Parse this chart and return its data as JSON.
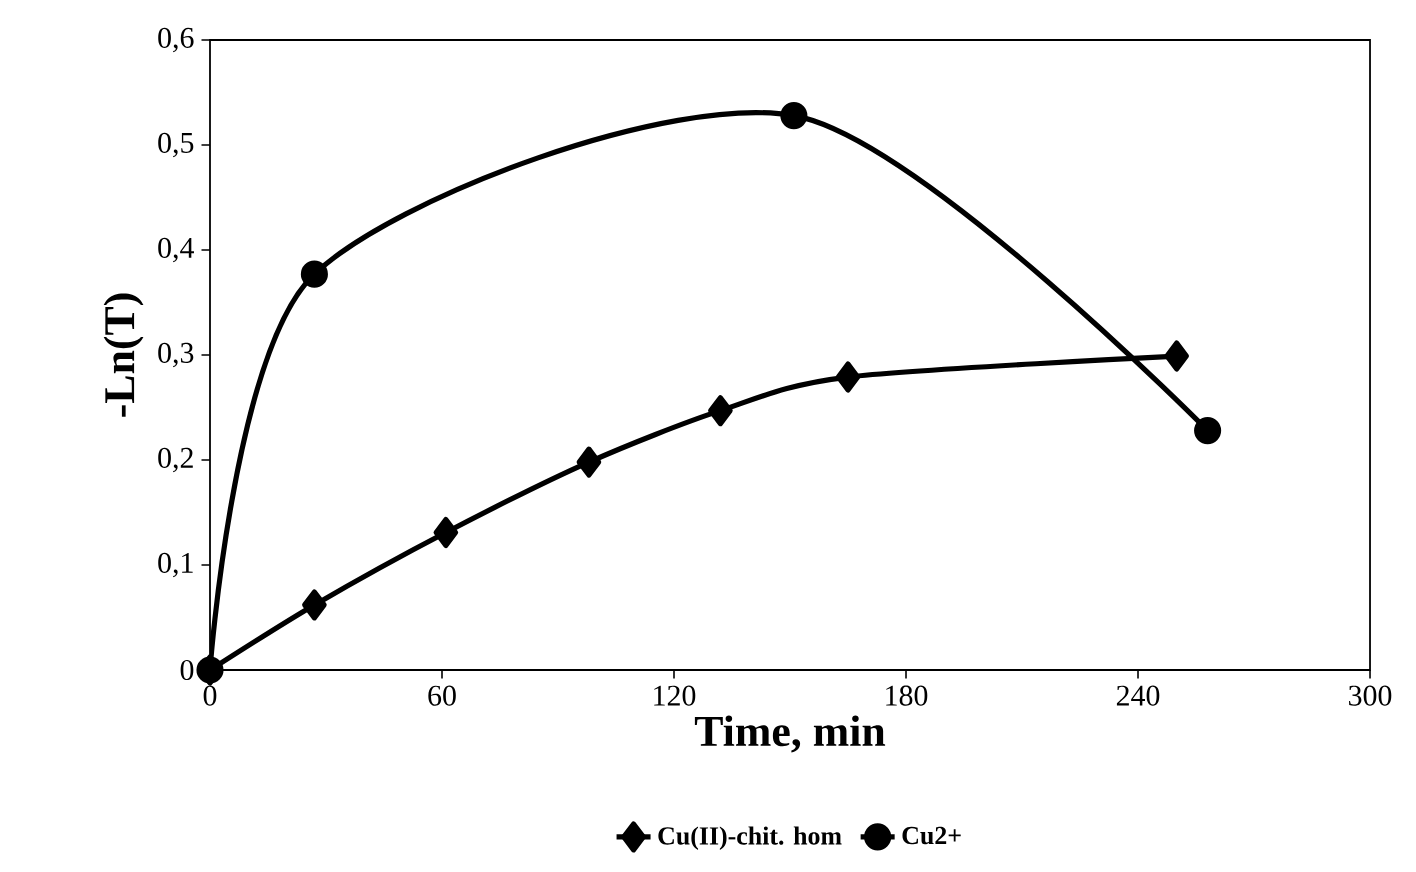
{
  "chart_data": {
    "type": "line",
    "xlabel": "Time, min",
    "ylabel": "-Ln(T)",
    "xlim": [
      0,
      300
    ],
    "xticks": [
      0,
      60,
      120,
      180,
      240,
      300
    ],
    "ylim": [
      0,
      0.6
    ],
    "yticks": [
      0,
      {
        "value": 0.1,
        "label": "0,1"
      },
      {
        "value": 0.2,
        "label": "0,2"
      },
      {
        "value": 0.3,
        "label": "0,3"
      },
      {
        "value": 0.4,
        "label": "0,4"
      },
      {
        "value": 0.5,
        "label": "0,5"
      },
      {
        "value": 0.6,
        "label": "0,6"
      }
    ],
    "grid": false,
    "legend": "bottom",
    "line_style": "solid",
    "series": [
      {
        "name": "Cu(II)-chit. hom",
        "color": "#000000",
        "marker": "diamond",
        "x": [
          0,
          27,
          61,
          98,
          132,
          165,
          250
        ],
        "values": [
          0,
          0.062,
          0.131,
          0.198,
          0.247,
          0.279,
          0.299
        ]
      },
      {
        "name": "Cu2+",
        "color": "#000000",
        "marker": "circle",
        "x": [
          0,
          27,
          151,
          258
        ],
        "values": [
          0,
          0.377,
          0.528,
          0.228
        ]
      }
    ]
  }
}
